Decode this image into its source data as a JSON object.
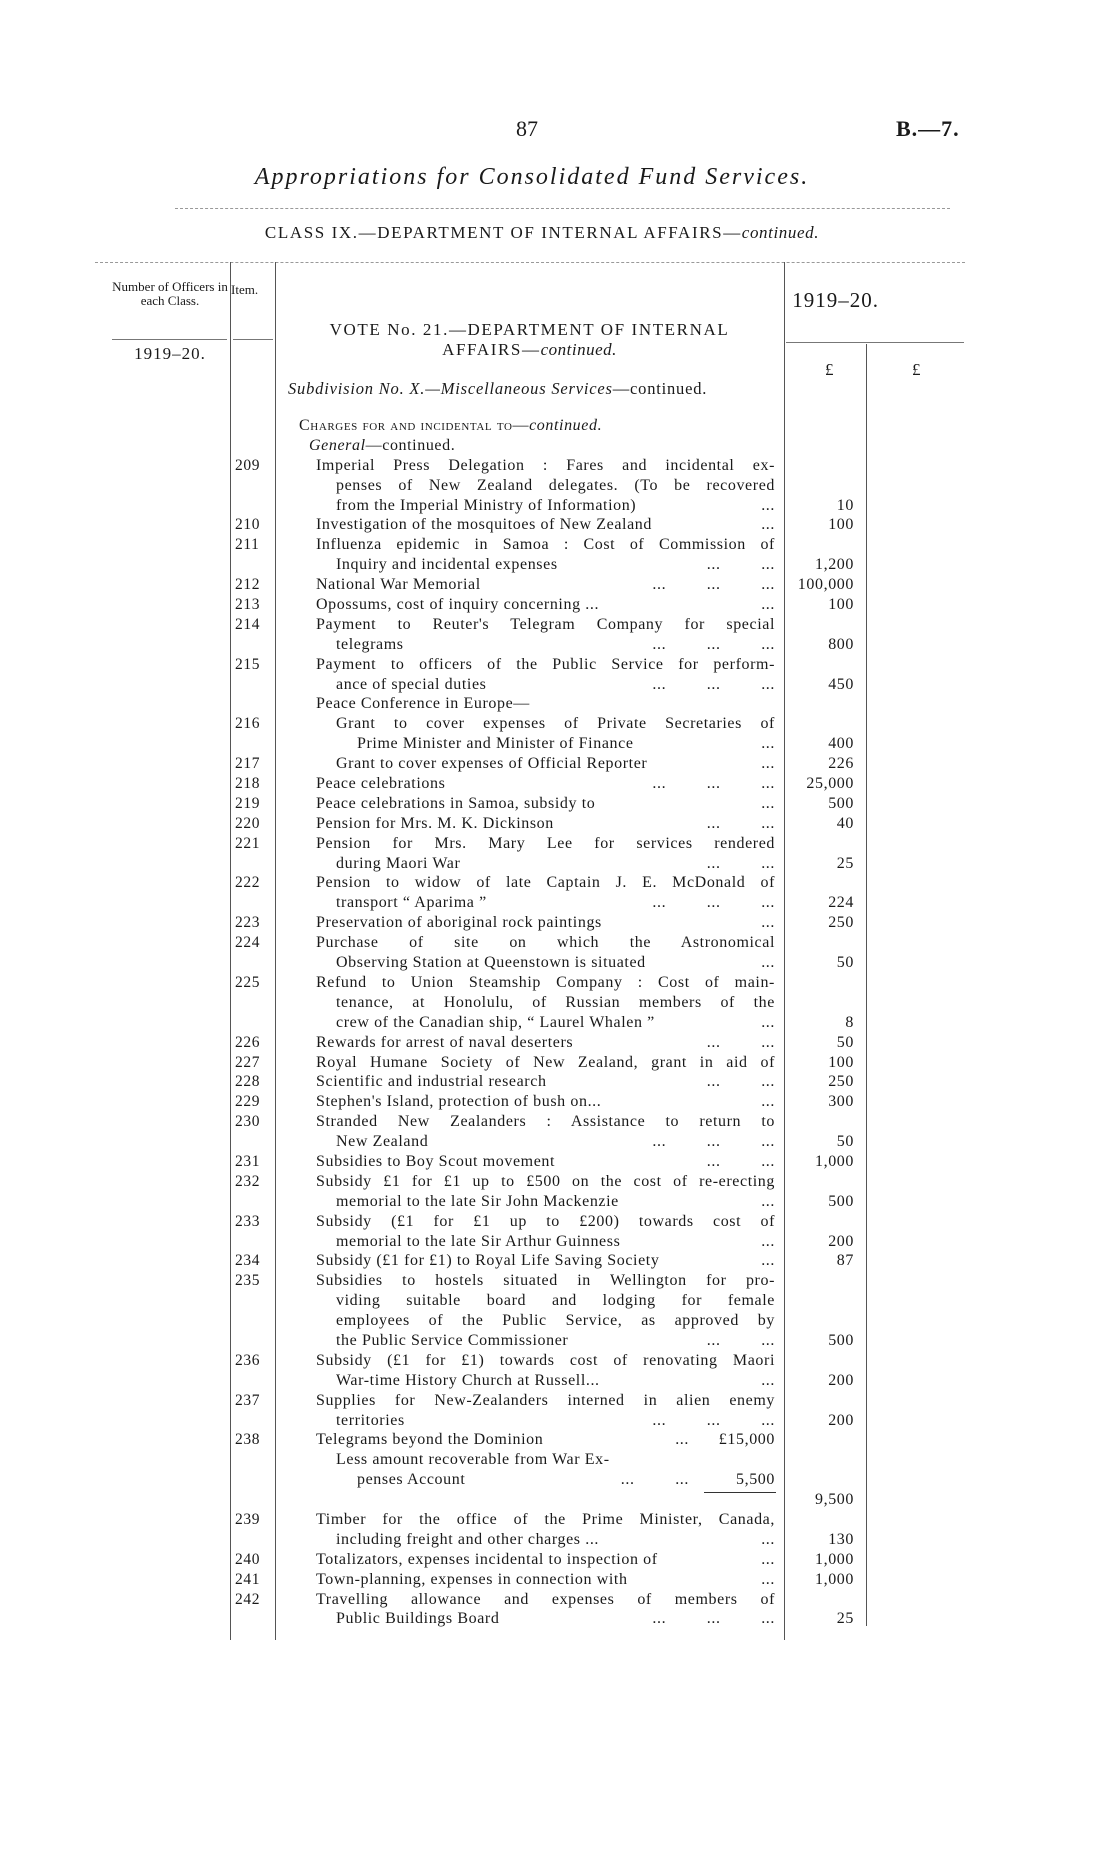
{
  "header": {
    "page_number": "87",
    "reference": "B.—7.",
    "title": "Appropriations for Consolidated Fund Services.",
    "class_line": "CLASS IX.—DEPARTMENT OF INTERNAL AFFAIRS—",
    "class_line_italic": "continued."
  },
  "table_header": {
    "officers": "Number of Officers in each Class.",
    "item": "Item.",
    "year_right": "1919–20.",
    "year_left": "1919–20.",
    "vote_line1": "VOTE No. 21.—DEPARTMENT OF INTERNAL",
    "vote_line2": "AFFAIRS—",
    "vote_line2_italic": "continued.",
    "currency_1": "£",
    "currency_2": "£",
    "subdivision_italic": "Subdivision No. X.—Miscellaneous Services",
    "subdivision_rest": "—continued."
  },
  "lines": [
    {
      "level": "c",
      "text": "Charges for and incidental to—",
      "italic": "continued.",
      "smallcaps": true
    },
    {
      "level": "g",
      "text": "—continued.",
      "italic_prefix": "General"
    },
    {
      "item": "209",
      "level": "1",
      "text": "Imperial Press Delegation : Fares and incidental ex-",
      "j": true
    },
    {
      "level": "2",
      "text": "penses of New Zealand delegates.  (To be recovered",
      "j": true
    },
    {
      "level": "2",
      "text": "from the Imperial Ministry of Information)",
      "dots": "...",
      "amount": "10"
    },
    {
      "item": "210",
      "level": "1",
      "text": "Investigation of the mosquitoes of New Zealand",
      "dots": "...",
      "amount": "100"
    },
    {
      "item": "211",
      "level": "1",
      "text": "Influenza epidemic in Samoa : Cost of Commission of",
      "j": true
    },
    {
      "level": "2",
      "text": "Inquiry and incidental expenses",
      "dots": "... ...",
      "amount": "1,200"
    },
    {
      "item": "212",
      "level": "1",
      "text": "National War Memorial",
      "dots": "... ... ...",
      "amount": "100,000"
    },
    {
      "item": "213",
      "level": "1",
      "text": "Opossums, cost of inquiry concerning ...",
      "dots": "...",
      "amount": "100"
    },
    {
      "item": "214",
      "level": "1",
      "text": "Payment to Reuter's Telegram Company for special",
      "j": true
    },
    {
      "level": "2",
      "text": "telegrams",
      "dots": "... ... ...",
      "amount": "800"
    },
    {
      "item": "215",
      "level": "1",
      "text": "Payment to officers of the Public Service for perform-",
      "j": true
    },
    {
      "level": "2",
      "text": "ance of special duties",
      "dots": "... ... ...",
      "amount": "450"
    },
    {
      "level": "1",
      "text": "Peace Conference in Europe—"
    },
    {
      "item": "216",
      "level": "2",
      "text": "Grant to cover expenses of Private Secretaries of",
      "j": true
    },
    {
      "level": "3",
      "text": "Prime Minister and Minister of Finance",
      "dots": "...",
      "amount": "400"
    },
    {
      "item": "217",
      "level": "2",
      "text": "Grant to cover expenses of Official Reporter",
      "dots": "...",
      "amount": "226"
    },
    {
      "item": "218",
      "level": "1",
      "text": "Peace celebrations",
      "dots": "... ... ...",
      "amount": "25,000"
    },
    {
      "item": "219",
      "level": "1",
      "text": "Peace celebrations in Samoa, subsidy to",
      "dots": "...",
      "amount": "500"
    },
    {
      "item": "220",
      "level": "1",
      "text": "Pension for Mrs. M. K. Dickinson",
      "dots": "... ...",
      "amount": "40"
    },
    {
      "item": "221",
      "level": "1",
      "text": "Pension for Mrs. Mary Lee for services rendered",
      "j": true
    },
    {
      "level": "2",
      "text": "during Maori War",
      "dots": "... ...",
      "amount": "25"
    },
    {
      "item": "222",
      "level": "1",
      "text": "Pension to widow of late Captain J. E. McDonald of",
      "j": true
    },
    {
      "level": "2",
      "text": "transport “ Aparima ”",
      "dots": "... ... ...",
      "amount": "224"
    },
    {
      "item": "223",
      "level": "1",
      "text": "Preservation of aboriginal rock paintings",
      "dots": "...",
      "amount": "250"
    },
    {
      "item": "224",
      "level": "1",
      "text": "Purchase of site on which the Astronomical",
      "j": true
    },
    {
      "level": "2",
      "text": "Observing Station at Queenstown is situated",
      "dots": "...",
      "amount": "50"
    },
    {
      "item": "225",
      "level": "1",
      "text": "Refund to Union Steamship Company : Cost of main-",
      "j": true
    },
    {
      "level": "2",
      "text": "tenance, at Honolulu, of Russian members of the",
      "j": true
    },
    {
      "level": "2",
      "text": "crew of the Canadian ship, “ Laurel Whalen ”",
      "dots": "...",
      "amount": "8"
    },
    {
      "item": "226",
      "level": "1",
      "text": "Rewards for arrest of naval deserters",
      "dots": "... ...",
      "amount": "50"
    },
    {
      "item": "227",
      "level": "1",
      "text": "Royal Humane Society of New Zealand, grant in aid of",
      "j": true,
      "amount": "100"
    },
    {
      "item": "228",
      "level": "1",
      "text": "Scientific and industrial research",
      "dots": "... ...",
      "amount": "250"
    },
    {
      "item": "229",
      "level": "1",
      "text": "Stephen's Island, protection of bush on...",
      "dots": "...",
      "amount": "300"
    },
    {
      "item": "230",
      "level": "1",
      "text": "Stranded New Zealanders : Assistance to return to",
      "j": true
    },
    {
      "level": "2",
      "text": "New Zealand",
      "dots": "... ... ...",
      "amount": "50"
    },
    {
      "item": "231",
      "level": "1",
      "text": "Subsidies to Boy Scout movement",
      "dots": "... ...",
      "amount": "1,000"
    },
    {
      "item": "232",
      "level": "1",
      "text": "Subsidy £1 for £1 up to £500 on the cost of re-erecting",
      "j": true
    },
    {
      "level": "2",
      "text": "memorial to the late Sir John Mackenzie",
      "dots": "...",
      "amount": "500"
    },
    {
      "item": "233",
      "level": "1",
      "text": "Subsidy (£1 for £1 up to £200) towards cost of",
      "j": true
    },
    {
      "level": "2",
      "text": "memorial to the late Sir Arthur Guinness",
      "dots": "...",
      "amount": "200"
    },
    {
      "item": "234",
      "level": "1",
      "text": "Subsidy (£1 for £1) to Royal Life Saving Society",
      "dots": "...",
      "amount": "87"
    },
    {
      "item": "235",
      "level": "1",
      "text": "Subsidies to hostels situated in Wellington for pro-",
      "j": true
    },
    {
      "level": "2",
      "text": "viding suitable board and lodging for female",
      "j": true
    },
    {
      "level": "2",
      "text": "employees of the Public Service, as approved by",
      "j": true
    },
    {
      "level": "2",
      "text": "the Public Service Commissioner",
      "dots": "... ...",
      "amount": "500"
    },
    {
      "item": "236",
      "level": "1",
      "text": "Subsidy (£1 for £1) towards cost of renovating Maori",
      "j": true
    },
    {
      "level": "2",
      "text": "War-time History Church at Russell...",
      "dots": "...",
      "amount": "200"
    },
    {
      "item": "237",
      "level": "1",
      "text": "Supplies for New-Zealanders interned in alien enemy",
      "j": true
    },
    {
      "level": "2",
      "text": "territories",
      "dots": "... ... ...",
      "amount": "200"
    },
    {
      "item": "238",
      "level": "1",
      "text": "Telegrams beyond the Dominion",
      "dots": "...",
      "sub": "£15,000"
    },
    {
      "level": "2",
      "text": "Less amount recoverable from War Ex-"
    },
    {
      "level": "3",
      "text": "penses Account",
      "dots": "... ...",
      "sub": "5,500"
    },
    {
      "level": "1",
      "text": "",
      "rule": true,
      "amount": "9,500"
    },
    {
      "item": "239",
      "level": "1",
      "text": "Timber for the office of the Prime Minister, Canada,",
      "j": true
    },
    {
      "level": "2",
      "text": "including freight and other charges ...",
      "dots": "...",
      "amount": "130"
    },
    {
      "item": "240",
      "level": "1",
      "text": "Totalizators, expenses incidental to inspection of",
      "dots": "...",
      "amount": "1,000"
    },
    {
      "item": "241",
      "level": "1",
      "text": "Town-planning, expenses in connection with",
      "dots": "...",
      "amount": "1,000"
    },
    {
      "item": "242",
      "level": "1",
      "text": "Travelling allowance and expenses of members of",
      "j": true
    },
    {
      "level": "2",
      "text": "Public Buildings Board",
      "dots": "... ... ...",
      "amount": "25"
    }
  ]
}
